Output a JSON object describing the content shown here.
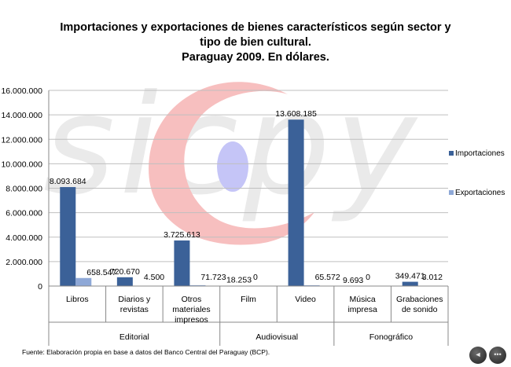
{
  "title": {
    "line1": "Importaciones  y exportaciones  de bienes característicos  según sector y",
    "line2": "tipo de bien cultural.",
    "line3": "Paraguay  2009. En dólares."
  },
  "watermark": {
    "text": "sicpy"
  },
  "source": "Fuente:  Elaboración propia en base a datos del Banco Central del Paraguay (BCP).",
  "nav": {
    "prev_label": "◄",
    "menu_label": "•••"
  },
  "colors": {
    "importaciones": "#3b6198",
    "exportaciones": "#8ea8d7",
    "grid": "#bfbfbf"
  },
  "chart_data": {
    "type": "bar",
    "title": "Importaciones  y exportaciones  de bienes característicos  según sector y tipo de bien cultural. Paraguay  2009. En dólares.",
    "ylim": [
      0,
      16000000
    ],
    "yticks": [
      "0",
      "2.000.000",
      "4.000.000",
      "6.000.000",
      "8.000.000",
      "10.000.000",
      "12.000.000",
      "14.000.000",
      "16.000.000"
    ],
    "grid": true,
    "legend_position": "right",
    "categories": [
      {
        "lines": [
          "Libros"
        ],
        "group": "Editorial"
      },
      {
        "lines": [
          "Diarios y",
          "revistas"
        ],
        "group": "Editorial"
      },
      {
        "lines": [
          "Otros",
          "materiales",
          "impresos"
        ],
        "group": "Editorial"
      },
      {
        "lines": [
          "Film"
        ],
        "group": "Audiovisual"
      },
      {
        "lines": [
          "Video"
        ],
        "group": "Audiovisual"
      },
      {
        "lines": [
          "Música",
          "impresa"
        ],
        "group": "Fonográfico"
      },
      {
        "lines": [
          "Grabaciones",
          "de sonido"
        ],
        "group": "Fonográfico"
      }
    ],
    "groups": [
      "Editorial",
      "Audiovisual",
      "Fonográfico"
    ],
    "series": [
      {
        "name": "Importaciones",
        "values": [
          8093684,
          720670,
          3725613,
          18253,
          13608185,
          9693,
          349471
        ],
        "labels": [
          "8.093.684",
          "720.670",
          "3.725.613",
          "18.253",
          "13.608.185",
          "9.693",
          "349.471"
        ]
      },
      {
        "name": "Exportaciones",
        "values": [
          658547,
          4500,
          71723,
          0,
          65572,
          0,
          3012
        ],
        "labels": [
          "658.547",
          "4.500",
          "71.723",
          "0",
          "65.572",
          "0",
          "3.012"
        ]
      }
    ]
  }
}
